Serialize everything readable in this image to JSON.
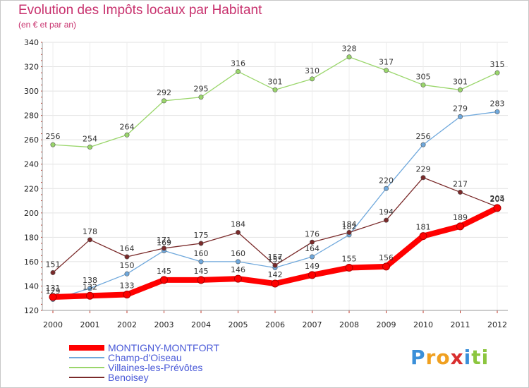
{
  "chart_data": {
    "type": "line",
    "title": "Evolution des Impôts locaux par Habitant",
    "subtitle": "(en € et par an)",
    "x": [
      "2000",
      "2001",
      "2002",
      "2003",
      "2004",
      "2005",
      "2006",
      "2007",
      "2008",
      "2009",
      "2010",
      "2011",
      "2012"
    ],
    "ylim": [
      120,
      340
    ],
    "yticks": [
      120,
      140,
      160,
      180,
      200,
      220,
      240,
      260,
      280,
      300,
      320,
      340
    ],
    "grid": true,
    "legend_position": "bottom-left",
    "series": [
      {
        "name": "MONTIGNY-MONTFORT",
        "color": "#ff0000",
        "values": [
          131,
          132,
          133,
          145,
          145,
          146,
          142,
          149,
          155,
          156,
          181,
          189,
          204
        ]
      },
      {
        "name": "Champ-d'Oiseau",
        "color": "#6fa8dc",
        "values": [
          129,
          138,
          150,
          169,
          160,
          160,
          155,
          164,
          182,
          220,
          256,
          279,
          283
        ]
      },
      {
        "name": "Villaines-les-Prévôtes",
        "color": "#9ad66b",
        "values": [
          256,
          254,
          264,
          292,
          295,
          316,
          301,
          310,
          328,
          317,
          305,
          301,
          315
        ]
      },
      {
        "name": "Benoisey",
        "color": "#7a2a2a",
        "values": [
          151,
          178,
          164,
          171,
          175,
          184,
          157,
          176,
          184,
          194,
          229,
          217,
          205
        ]
      }
    ]
  },
  "logo": {
    "letters": [
      "P",
      "r",
      "o",
      "x",
      "i",
      "t",
      "i"
    ],
    "colors": [
      "#3a8fd9",
      "#f0a020",
      "#f0a020",
      "#d92f2f",
      "#3a8fd9",
      "#8cc63f",
      "#8cc63f"
    ]
  }
}
